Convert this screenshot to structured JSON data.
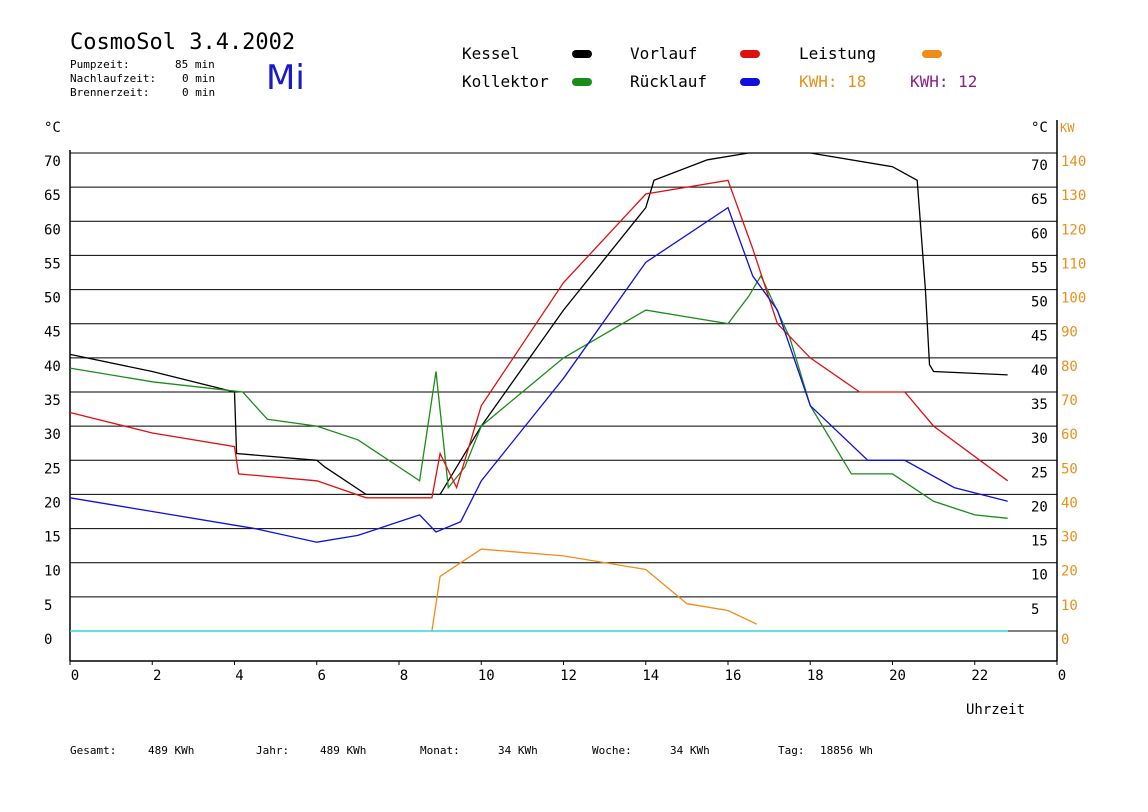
{
  "header": {
    "title": "CosmoSol 3.4.2002",
    "day": "Mi",
    "pumpzeit_label": "Pumpzeit:",
    "pumpzeit_value": "85 min",
    "nachlauf_label": "Nachlaufzeit:",
    "nachlauf_value": "0 min",
    "brenner_label": "Brennerzeit:",
    "brenner_value": "0 min"
  },
  "legend": {
    "kessel": "Kessel",
    "kollektor": "Kollektor",
    "vorlauf": "Vorlauf",
    "ruecklauf": "Rücklauf",
    "leistung": "Leistung",
    "kwh_orange": "KWH: 18",
    "kwh_purple": "KWH: 12"
  },
  "colors": {
    "kessel": "#000000",
    "kollektor": "#1a8c1a",
    "vorlauf": "#e01010",
    "ruecklauf": "#1010dd",
    "leistung": "#f08c1a",
    "kwh2": "#8a2090",
    "baseline": "#30d8d8"
  },
  "footer": {
    "gesamt_label": "Gesamt:",
    "gesamt_value": "489 KWh",
    "jahr_label": "Jahr:",
    "jahr_value": "489 KWh",
    "monat_label": "Monat:",
    "monat_value": "34 KWh",
    "woche_label": "Woche:",
    "woche_value": "34 KWh",
    "tag_label": "Tag:",
    "tag_value": "18856 Wh"
  },
  "chart_data": {
    "type": "line",
    "xlabel": "Uhrzeit",
    "y_unit_left": "°C",
    "y_unit_right_temp": "°C",
    "y_unit_right_power": "KW",
    "xlim": [
      0,
      24
    ],
    "ylim": [
      0,
      70
    ],
    "x_ticks": [
      "0",
      "2",
      "4",
      "6",
      "8",
      "10",
      "12",
      "14",
      "16",
      "18",
      "20",
      "22",
      "0"
    ],
    "y_ticks_left": [
      "0",
      "5",
      "10",
      "15",
      "20",
      "25",
      "30",
      "35",
      "40",
      "45",
      "50",
      "55",
      "60",
      "65",
      "70"
    ],
    "y_ticks_right_temp": [
      "5",
      "10",
      "15",
      "20",
      "25",
      "30",
      "35",
      "40",
      "45",
      "50",
      "55",
      "60",
      "65",
      "70"
    ],
    "y_ticks_right_power": [
      "0",
      "10",
      "20",
      "30",
      "40",
      "50",
      "60",
      "70",
      "80",
      "90",
      "100",
      "110",
      "120",
      "130",
      "140"
    ],
    "grid": true,
    "series": [
      {
        "name": "Kessel",
        "x": [
          0,
          2,
          4,
          4.05,
          6,
          6.2,
          7.2,
          9,
          9.3,
          10,
          12,
          14,
          14.2,
          15.5,
          16.5,
          18,
          20,
          20.6,
          20.8,
          20.9,
          21,
          22.8
        ],
        "y": [
          40.5,
          38,
          35,
          26,
          25,
          24,
          20,
          20,
          23,
          30,
          47,
          62,
          66,
          69,
          70,
          70,
          68,
          66,
          50,
          39,
          38,
          37.5
        ]
      },
      {
        "name": "Kollektor",
        "x": [
          0,
          2,
          4.2,
          4.8,
          6,
          7,
          8.5,
          8.9,
          9.2,
          9.6,
          10,
          12,
          14,
          15,
          16,
          16.5,
          16.8,
          17.5,
          18,
          19,
          20,
          21,
          22,
          22.8
        ],
        "y": [
          38.5,
          36.5,
          35,
          31,
          30,
          28,
          22,
          38,
          21,
          24,
          30,
          40,
          47,
          46,
          45,
          49,
          52,
          43,
          33,
          23,
          23,
          19,
          17,
          16.5
        ]
      },
      {
        "name": "Vorlauf",
        "x": [
          0,
          2,
          4,
          4.1,
          6,
          7.2,
          8.8,
          9,
          9.4,
          10,
          12,
          14,
          16,
          16.6,
          17.2,
          18,
          19.2,
          20.3,
          21,
          22.8
        ],
        "y": [
          32,
          29,
          27,
          23,
          22,
          19.5,
          19.5,
          26,
          21,
          33,
          51,
          64,
          66,
          56,
          45,
          40,
          35,
          35,
          30,
          22
        ]
      },
      {
        "name": "Rücklauf",
        "x": [
          0,
          2,
          4,
          4.5,
          6,
          7,
          8.5,
          8.9,
          9.5,
          10,
          12,
          14,
          16,
          16.6,
          17.2,
          18,
          19.4,
          20.3,
          21.5,
          22.8
        ],
        "y": [
          19.5,
          17.5,
          15.5,
          15,
          13,
          14,
          17,
          14.5,
          16,
          22,
          37,
          54,
          62,
          52,
          47,
          33,
          25,
          25,
          21,
          19
        ]
      },
      {
        "name": "Leistung",
        "x": [
          8.8,
          9,
          9.5,
          10,
          12,
          14,
          15,
          16,
          16.7
        ],
        "y": [
          0,
          8,
          10,
          12,
          11,
          9,
          4,
          3,
          1
        ]
      }
    ]
  }
}
